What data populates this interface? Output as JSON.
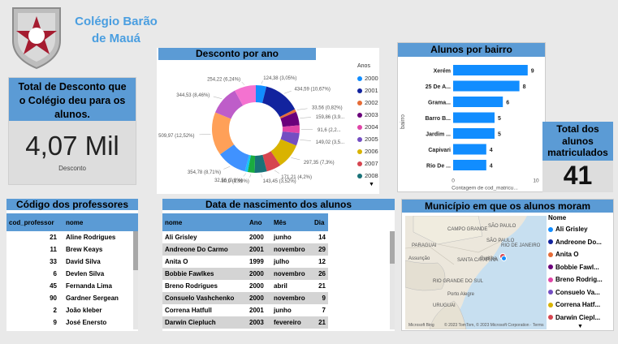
{
  "school": {
    "name_line1": "Colégio Barão",
    "name_line2": "de Mauá",
    "logo_text": "Barão de Mauá"
  },
  "kpi_desconto": {
    "title": "Total de Desconto que o Colégio deu para os alunos.",
    "value": "4,07 Mil",
    "label": "Desconto"
  },
  "kpi_alunos": {
    "title": "Total dos alunos matriculados",
    "value": "41"
  },
  "donut": {
    "title": "Desconto por ano",
    "legend_title": "Anos",
    "legend": [
      {
        "label": "2000",
        "color": "#118dff"
      },
      {
        "label": "2001",
        "color": "#12239e"
      },
      {
        "label": "2002",
        "color": "#e66c37"
      },
      {
        "label": "2003",
        "color": "#6b007b"
      },
      {
        "label": "2004",
        "color": "#e044a7"
      },
      {
        "label": "2005",
        "color": "#744ec2"
      },
      {
        "label": "2006",
        "color": "#d9b300"
      },
      {
        "label": "2007",
        "color": "#d64550"
      },
      {
        "label": "2008",
        "color": "#197278"
      }
    ],
    "labels": [
      "124,38 (3,05%)",
      "434,59 (10,67%)",
      "33,56 (0,82%)",
      "159,86 (3,9...",
      "91,6 (2,2...",
      "149,02 (3,5...",
      "297,35 (7,3%)",
      "171,21 (4,2%)",
      "143,45 (3,52%)",
      "80,9 (1,99%)",
      "32,56 (0,8%)",
      "354,78 (8,71%)",
      "509,97 (12,52%)",
      "344,53 (8,46%)",
      "254,22 (6,24%)"
    ]
  },
  "chart_data": {
    "type": "bar",
    "title": "Alunos por bairro",
    "xlabel": "Contagem de cod_matricu...",
    "ylabel": "bairro",
    "categories": [
      "Xerém",
      "25 De A...",
      "Grama...",
      "Barro B...",
      "Jardim ...",
      "Capivari",
      "Rio De ..."
    ],
    "values": [
      9,
      8,
      6,
      5,
      5,
      4,
      4
    ],
    "xlim": [
      0,
      10
    ],
    "ticks": [
      "0",
      "10"
    ],
    "color": "#118dff"
  },
  "professores": {
    "title": "Código dos professores",
    "columns": [
      "cod_professor",
      "nome"
    ],
    "rows": [
      [
        "21",
        "Aline Rodrigues"
      ],
      [
        "11",
        "Brew Keays"
      ],
      [
        "33",
        "David Silva"
      ],
      [
        "6",
        "Devlen Silva"
      ],
      [
        "45",
        "Fernanda Lima"
      ],
      [
        "90",
        "Gardner Sergean"
      ],
      [
        "2",
        "João kleber"
      ],
      [
        "9",
        "José Enersto"
      ]
    ]
  },
  "nascimento": {
    "title": "Data de nascimento dos alunos",
    "columns": [
      "nome",
      "Ano",
      "Mês",
      "Dia"
    ],
    "rows": [
      [
        "Ali Grisley",
        "2000",
        "junho",
        "14"
      ],
      [
        "Andreone Do Carmo",
        "2001",
        "novembro",
        "29"
      ],
      [
        "Anita O",
        "1999",
        "julho",
        "12"
      ],
      [
        "Bobbie Fawlkes",
        "2000",
        "novembro",
        "26"
      ],
      [
        "Breno Rodrigues",
        "2000",
        "abril",
        "21"
      ],
      [
        "Consuelo Vashchenko",
        "2000",
        "novembro",
        "9"
      ],
      [
        "Correna Hatfull",
        "2001",
        "junho",
        "7"
      ],
      [
        "Darwin Ciepluch",
        "2003",
        "fevereiro",
        "21"
      ]
    ]
  },
  "mapa": {
    "title": "Município em que os alunos moram",
    "legend_title": "Nome",
    "legend": [
      {
        "label": "Ali Grisley",
        "color": "#118dff"
      },
      {
        "label": "Andreone Do...",
        "color": "#12239e"
      },
      {
        "label": "Anita O",
        "color": "#e66c37"
      },
      {
        "label": "Bobbie Fawl...",
        "color": "#6b007b"
      },
      {
        "label": "Breno Rodrig...",
        "color": "#e044a7"
      },
      {
        "label": "Consuelo Va...",
        "color": "#744ec2"
      },
      {
        "label": "Correna Hatf...",
        "color": "#d9b300"
      },
      {
        "label": "Darwin Ciepl...",
        "color": "#d64550"
      }
    ],
    "places": [
      "CAMPO GRANDE",
      "SÃO PAULO",
      "PARAGUAI",
      "SÃO PAULO",
      "RIO DE JANEIRO",
      "Curitiba",
      "SANTA CATARINA",
      "Assunção",
      "RIO GRANDE DO SUL",
      "URUGUAI",
      "Porto Alegre"
    ],
    "attribution": "© 2023 TomTom, © 2023 Microsoft Corporation · Terms",
    "provider": "Microsoft Bing"
  }
}
